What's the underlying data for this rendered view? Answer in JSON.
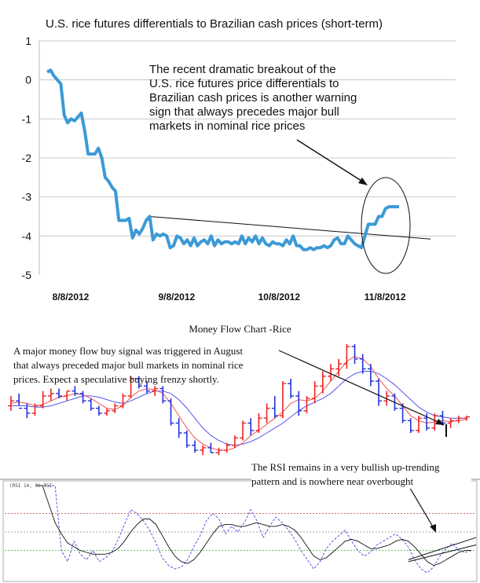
{
  "chart_data": [
    {
      "type": "line",
      "title": "U.S. rice futures differentials to Brazilian cash prices (short-term)",
      "ylim": [
        -5,
        1
      ],
      "yticks": [
        "1",
        "0",
        "-1",
        "-2",
        "-3",
        "-4",
        "-5"
      ],
      "ytick_values": [
        1,
        0,
        -1,
        -2,
        -3,
        -4,
        -5
      ],
      "xtick_labels": [
        "8/8/2012",
        "9/8/2012",
        "10/8/2012",
        "11/8/2012"
      ],
      "xtick_positions": [
        0,
        31,
        61,
        92
      ],
      "grid": "horizontal",
      "line_color": "#3b9ad6",
      "series": [
        {
          "x": [
            0,
            1,
            2,
            3,
            4,
            5,
            6,
            7,
            8,
            9,
            10,
            11,
            12,
            13,
            14,
            15,
            16,
            17,
            18,
            19,
            20,
            21,
            22,
            23,
            24,
            25,
            26,
            27,
            28,
            29,
            30,
            31,
            32,
            33,
            34,
            35,
            36,
            37,
            38,
            39,
            40,
            41,
            42,
            43,
            44,
            45,
            46,
            47,
            48,
            49,
            50,
            51,
            52,
            53,
            54,
            55,
            56,
            57,
            58,
            59,
            60,
            61,
            62,
            63,
            64,
            65,
            66,
            67,
            68,
            69,
            70,
            71,
            72,
            73,
            74,
            75,
            76,
            77,
            78,
            79,
            80,
            81,
            82,
            83,
            84,
            85,
            86,
            87,
            88,
            89,
            90,
            91,
            92,
            93,
            94,
            95,
            96,
            97,
            98,
            99,
            100,
            101,
            102,
            103
          ],
          "values": [
            0.2,
            0.25,
            0.1,
            0.0,
            -0.1,
            -0.9,
            -1.1,
            -1.0,
            -1.05,
            -0.95,
            -0.85,
            -1.3,
            -1.9,
            -1.9,
            -1.9,
            -1.75,
            -2.0,
            -2.5,
            -2.6,
            -2.75,
            -2.85,
            -3.6,
            -3.6,
            -3.6,
            -3.55,
            -4.05,
            -3.85,
            -3.95,
            -3.8,
            -3.6,
            -3.5,
            -4.1,
            -3.95,
            -4.0,
            -3.95,
            -4.0,
            -4.3,
            -4.25,
            -4.0,
            -4.05,
            -4.2,
            -4.1,
            -4.25,
            -4.05,
            -4.25,
            -4.15,
            -4.1,
            -4.2,
            -4.0,
            -4.25,
            -4.1,
            -4.2,
            -4.15,
            -4.15,
            -4.2,
            -4.15,
            -4.2,
            -4.0,
            -4.2,
            -4.05,
            -4.15,
            -4.0,
            -4.2,
            -4.05,
            -4.2,
            -4.25,
            -4.15,
            -4.2,
            -4.2,
            -4.25,
            -4.1,
            -4.2,
            -4.0,
            -4.25,
            -4.25,
            -4.35,
            -4.35,
            -4.3,
            -4.35,
            -4.3,
            -4.3,
            -4.25,
            -4.3,
            -4.25,
            -4.1,
            -4.05,
            -4.2,
            -4.2,
            -4.0,
            -4.1,
            -4.2,
            -4.25,
            -4.3,
            -4.0,
            -3.7,
            -3.7,
            -3.7,
            -3.5,
            -3.5,
            -3.3,
            -3.25,
            -3.25,
            -3.25,
            -3.25
          ]
        }
      ],
      "trendline_values": [
        [
          30,
          -3.5
        ],
        [
          101,
          -4.0
        ]
      ],
      "annotation": "The recent dramatic breakout of the U.S. rice futures price differentials to Brazilian cash prices is another warning sign that always precedes major bull markets in nominal rice prices",
      "annotation_lines": [
        "The recent dramatic breakout of the",
        "U.S. rice futures price differentials to",
        "Brazilian cash prices is another warning",
        "sign that always precedes major bull",
        "markets in nominal rice prices"
      ]
    },
    {
      "type": "line",
      "title": "Money Flow Chart -Rice",
      "indicator_label": "(RSI 14, 9) RSI",
      "price_range": [
        0,
        100
      ],
      "rsi_range": [
        0,
        100
      ],
      "rsi_reference_levels": [
        70,
        50,
        30
      ],
      "colors": {
        "up": "#ee2222",
        "down": "#2233dd",
        "fast_ma": "#ee5555",
        "slow_ma": "#5555ee",
        "rsi": "#4444dd",
        "rsi_avg": "#111111"
      },
      "price_series": [
        {
          "o": 50,
          "h": 58,
          "l": 46,
          "c": 54
        },
        {
          "o": 54,
          "h": 60,
          "l": 50,
          "c": 48
        },
        {
          "o": 48,
          "h": 52,
          "l": 40,
          "c": 44
        },
        {
          "o": 44,
          "h": 52,
          "l": 42,
          "c": 50
        },
        {
          "o": 50,
          "h": 62,
          "l": 48,
          "c": 58
        },
        {
          "o": 58,
          "h": 64,
          "l": 54,
          "c": 60
        },
        {
          "o": 60,
          "h": 64,
          "l": 56,
          "c": 58
        },
        {
          "o": 58,
          "h": 62,
          "l": 54,
          "c": 62
        },
        {
          "o": 62,
          "h": 66,
          "l": 58,
          "c": 60
        },
        {
          "o": 60,
          "h": 62,
          "l": 52,
          "c": 54
        },
        {
          "o": 54,
          "h": 56,
          "l": 46,
          "c": 48
        },
        {
          "o": 48,
          "h": 50,
          "l": 42,
          "c": 44
        },
        {
          "o": 44,
          "h": 48,
          "l": 42,
          "c": 46
        },
        {
          "o": 46,
          "h": 52,
          "l": 44,
          "c": 50
        },
        {
          "o": 50,
          "h": 60,
          "l": 48,
          "c": 58
        },
        {
          "o": 58,
          "h": 74,
          "l": 56,
          "c": 72
        },
        {
          "o": 72,
          "h": 74,
          "l": 64,
          "c": 66
        },
        {
          "o": 66,
          "h": 70,
          "l": 60,
          "c": 62
        },
        {
          "o": 62,
          "h": 66,
          "l": 58,
          "c": 64
        },
        {
          "o": 64,
          "h": 66,
          "l": 52,
          "c": 54
        },
        {
          "o": 54,
          "h": 56,
          "l": 34,
          "c": 36
        },
        {
          "o": 36,
          "h": 40,
          "l": 24,
          "c": 28
        },
        {
          "o": 28,
          "h": 30,
          "l": 16,
          "c": 18
        },
        {
          "o": 18,
          "h": 22,
          "l": 12,
          "c": 14
        },
        {
          "o": 14,
          "h": 18,
          "l": 10,
          "c": 16
        },
        {
          "o": 16,
          "h": 20,
          "l": 12,
          "c": 12
        },
        {
          "o": 12,
          "h": 16,
          "l": 10,
          "c": 14
        },
        {
          "o": 14,
          "h": 20,
          "l": 12,
          "c": 18
        },
        {
          "o": 18,
          "h": 26,
          "l": 16,
          "c": 24
        },
        {
          "o": 24,
          "h": 38,
          "l": 22,
          "c": 36
        },
        {
          "o": 36,
          "h": 40,
          "l": 26,
          "c": 30
        },
        {
          "o": 30,
          "h": 44,
          "l": 28,
          "c": 40
        },
        {
          "o": 40,
          "h": 52,
          "l": 36,
          "c": 48
        },
        {
          "o": 48,
          "h": 58,
          "l": 40,
          "c": 42
        },
        {
          "o": 42,
          "h": 70,
          "l": 40,
          "c": 68
        },
        {
          "o": 68,
          "h": 72,
          "l": 56,
          "c": 58
        },
        {
          "o": 58,
          "h": 62,
          "l": 42,
          "c": 46
        },
        {
          "o": 46,
          "h": 58,
          "l": 44,
          "c": 56
        },
        {
          "o": 56,
          "h": 70,
          "l": 52,
          "c": 66
        },
        {
          "o": 66,
          "h": 78,
          "l": 60,
          "c": 74
        },
        {
          "o": 74,
          "h": 84,
          "l": 70,
          "c": 80
        },
        {
          "o": 80,
          "h": 88,
          "l": 74,
          "c": 84
        },
        {
          "o": 84,
          "h": 100,
          "l": 80,
          "c": 98
        },
        {
          "o": 98,
          "h": 100,
          "l": 84,
          "c": 88
        },
        {
          "o": 88,
          "h": 92,
          "l": 76,
          "c": 80
        },
        {
          "o": 80,
          "h": 84,
          "l": 66,
          "c": 70
        },
        {
          "o": 70,
          "h": 72,
          "l": 50,
          "c": 54
        },
        {
          "o": 54,
          "h": 62,
          "l": 50,
          "c": 58
        },
        {
          "o": 58,
          "h": 60,
          "l": 46,
          "c": 48
        },
        {
          "o": 48,
          "h": 52,
          "l": 36,
          "c": 38
        },
        {
          "o": 38,
          "h": 40,
          "l": 28,
          "c": 30
        },
        {
          "o": 30,
          "h": 42,
          "l": 28,
          "c": 40
        },
        {
          "o": 40,
          "h": 44,
          "l": 30,
          "c": 32
        },
        {
          "o": 32,
          "h": 44,
          "l": 30,
          "c": 42
        },
        {
          "o": 42,
          "h": 46,
          "l": 34,
          "c": 36
        },
        {
          "o": 36,
          "h": 40,
          "l": 32,
          "c": 38
        },
        {
          "o": 38,
          "h": 42,
          "l": 36,
          "c": 40
        },
        {
          "o": 40,
          "h": 42,
          "l": 38,
          "c": 41
        }
      ],
      "fast_ma": [
        52,
        53,
        52,
        50,
        51,
        54,
        57,
        58,
        60,
        59,
        56,
        52,
        48,
        47,
        50,
        57,
        62,
        64,
        63,
        60,
        52,
        42,
        32,
        24,
        19,
        16,
        14,
        14,
        16,
        20,
        26,
        30,
        35,
        40,
        45,
        52,
        55,
        54,
        56,
        62,
        70,
        78,
        86,
        90,
        88,
        82,
        72,
        64,
        58,
        50,
        42,
        38,
        36,
        37,
        38,
        37,
        38,
        39
      ],
      "slow_ma": [
        50,
        50,
        50,
        49,
        49,
        50,
        52,
        54,
        56,
        58,
        58,
        57,
        55,
        53,
        52,
        54,
        57,
        60,
        62,
        62,
        60,
        55,
        48,
        40,
        32,
        26,
        22,
        19,
        18,
        19,
        21,
        24,
        28,
        32,
        36,
        41,
        46,
        50,
        53,
        56,
        60,
        66,
        72,
        76,
        78,
        78,
        76,
        72,
        67,
        61,
        55,
        49,
        45,
        42,
        41,
        40,
        40,
        40
      ],
      "rsi_series": [
        100,
        100,
        100,
        100,
        30,
        18,
        40,
        26,
        20,
        30,
        18,
        22,
        28,
        42,
        58,
        74,
        70,
        62,
        52,
        38,
        22,
        14,
        10,
        12,
        20,
        34,
        46,
        62,
        70,
        64,
        48,
        56,
        50,
        60,
        74,
        62,
        44,
        56,
        66,
        60,
        52,
        42,
        30,
        20,
        10,
        18,
        32,
        40,
        46,
        52,
        40,
        30,
        24,
        28,
        36,
        40,
        44,
        48,
        42,
        34,
        20,
        10,
        6,
        12,
        24,
        32,
        38,
        30,
        28,
        30
      ],
      "rsi_avg": [
        100,
        100,
        80,
        60,
        48,
        38,
        34,
        30,
        28,
        26,
        26,
        26,
        28,
        32,
        40,
        50,
        58,
        64,
        64,
        58,
        46,
        34,
        24,
        18,
        16,
        20,
        28,
        38,
        48,
        56,
        58,
        58,
        56,
        56,
        58,
        60,
        58,
        56,
        56,
        58,
        56,
        52,
        44,
        34,
        24,
        20,
        22,
        28,
        34,
        40,
        42,
        40,
        36,
        32,
        32,
        34,
        36,
        40,
        42,
        40,
        34,
        26,
        18,
        14,
        16,
        20,
        24,
        28,
        30,
        30
      ],
      "annotation_1": "A major money flow buy signal was triggered in August that always preceded major bull markets in nominal rice prices. Expect a speculative buying frenzy shortly.",
      "annotation_1_lines": [
        "A major money flow buy signal was triggered in August",
        "that always preceded major bull markets in nominal rice",
        "prices. Expect a speculative buying frenzy shortly."
      ],
      "annotation_2": "The RSI remains in a very bullish up-trending pattern and is nowhere near overbought",
      "annotation_2_lines": [
        "The RSI remains in a very bullish up-trending",
        "pattern and is nowhere near overbought"
      ]
    }
  ]
}
